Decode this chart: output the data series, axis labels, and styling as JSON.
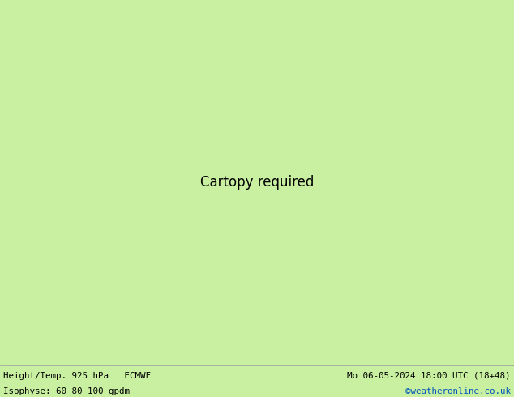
{
  "title_left": "Height/Temp. 925 hPa   ECMWF",
  "title_right": "Mo 06-05-2024 18:00 UTC (18+48)",
  "subtitle_left": "Isophyse: 60 80 100 gpdm",
  "subtitle_right": "©weatheronline.co.uk",
  "land_green": "#c8f0a0",
  "land_elevated_gray": "#d0d0d0",
  "border_color": "#909090",
  "text_color": "#000000",
  "subtitle_right_color": "#0055bb",
  "bottom_bar_bg": "#c8f0a0",
  "figsize": [
    6.34,
    4.9
  ],
  "dpi": 100,
  "lon_min": 24.5,
  "lon_max": 57.5,
  "lat_min": 12.0,
  "lat_max": 42.5,
  "contour_gray_color": "#707070",
  "contour_gray_lw": 0.55,
  "contour_main_lw": 1.3,
  "contour_main_color": "#000000",
  "temp_lw": 1.1,
  "temp_colors": [
    "#00ccff",
    "#0000ff",
    "#cc00cc",
    "#ff00ff",
    "#ff0000",
    "#ff6600",
    "#ffaa00",
    "#ffff00",
    "#99ff00",
    "#00cc00",
    "#009999",
    "#6600cc",
    "#ff99cc",
    "#3399ff"
  ],
  "temp_levels": [
    -16,
    -12,
    -8,
    -4,
    0,
    4,
    8,
    12,
    16,
    20,
    24,
    28,
    32,
    36
  ]
}
